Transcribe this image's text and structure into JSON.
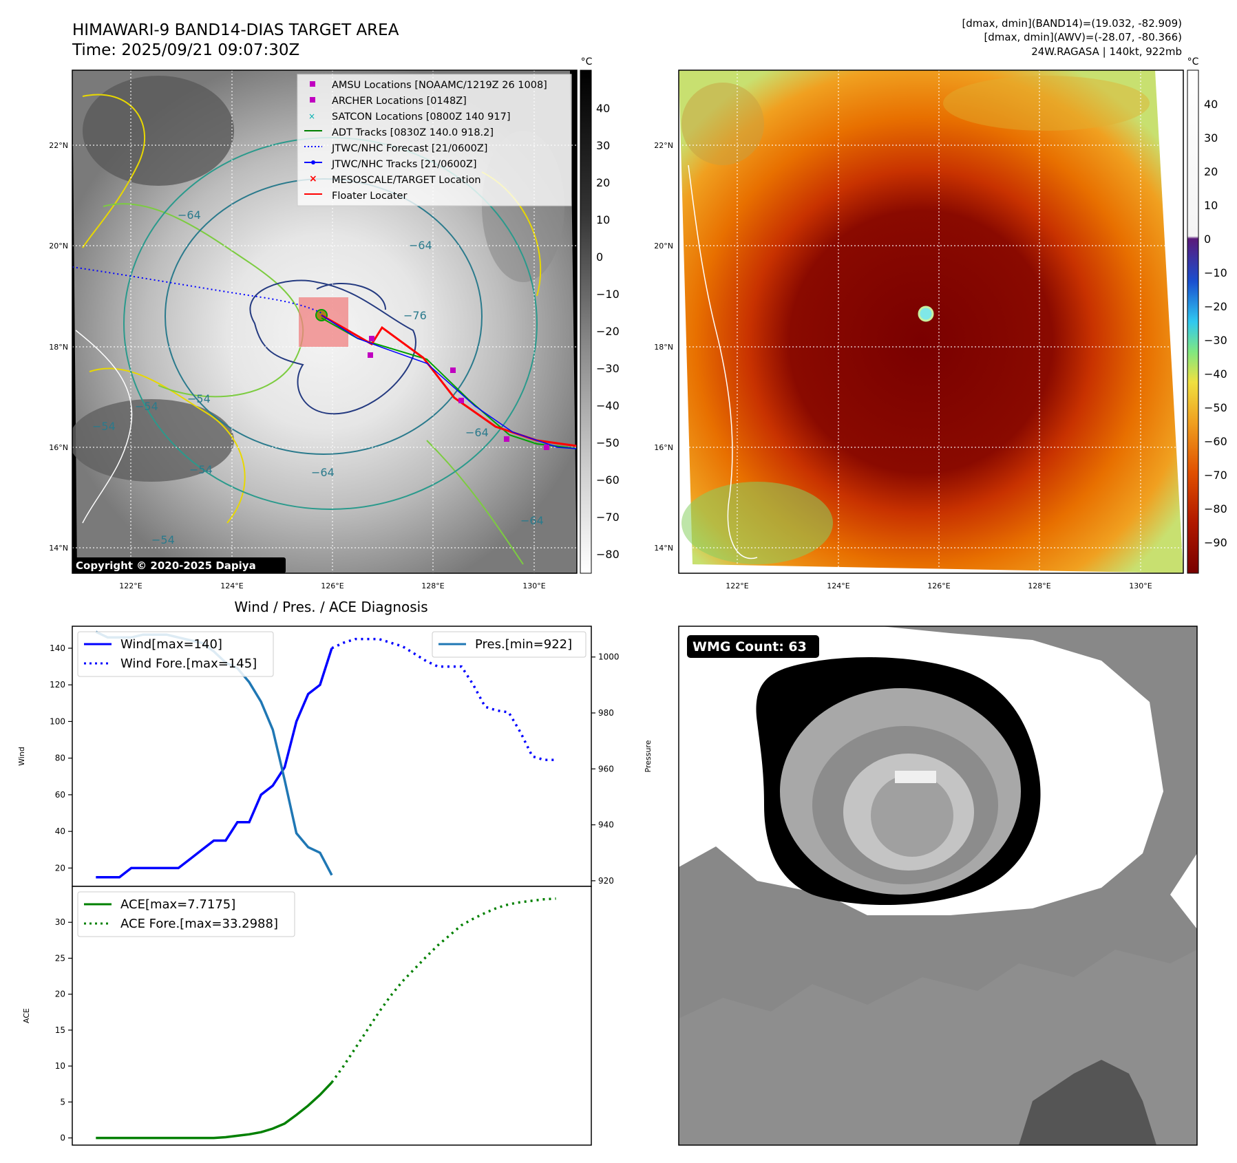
{
  "header": {
    "title_line1": "HIMAWARI-9 BAND14-DIAS TARGET AREA",
    "title_line2": "Time: 2025/09/21 09:07:30Z",
    "stats_line1": "[dmax, dmin](BAND14)=(19.032, -82.909)",
    "stats_line2": "[dmax, dmin](AWV)=(-28.07, -80.366)",
    "stats_line3": "24W.RAGASA | 140kt, 922mb"
  },
  "maps": {
    "lat_labels": [
      "22°N",
      "20°N",
      "18°N",
      "16°N",
      "14°N"
    ],
    "lon_labels": [
      "122°E",
      "124°E",
      "126°E",
      "128°E",
      "130°E"
    ],
    "colorbar_unit": "°C",
    "gray_colorbar_ticks": [
      "40",
      "30",
      "20",
      "10",
      "0",
      "−10",
      "−20",
      "−30",
      "−40",
      "−50",
      "−60",
      "−70",
      "−80"
    ],
    "color_colorbar_ticks": [
      "40",
      "30",
      "20",
      "10",
      "0",
      "−10",
      "−20",
      "−30",
      "−40",
      "−50",
      "−60",
      "−70",
      "−80",
      "−90"
    ],
    "copyright": "Copyright © 2020-2025 Dapiya",
    "contour_labels": [
      "−64",
      "−64",
      "−54",
      "−54",
      "−54",
      "−64",
      "−64",
      "−76",
      "−64",
      "−54",
      "−54"
    ],
    "legend": [
      {
        "label": "AMSU Locations [NOAAMC/1219Z 26 1008]",
        "color": "#c000c0"
      },
      {
        "label": "ARCHER Locations [0148Z]",
        "color": "#c000c0"
      },
      {
        "label": "SATCON Locations [0800Z 140 917]",
        "color": "#00c0c0"
      },
      {
        "label": "ADT Tracks [0830Z 140.0 918.2]",
        "color": "#008000"
      },
      {
        "label": "JTWC/NHC Forecast [21/0600Z]",
        "color": "#0000ff"
      },
      {
        "label": "JTWC/NHC Tracks [21/0600Z]",
        "color": "#0000ff"
      },
      {
        "label": "MESOSCALE/TARGET Location",
        "color": "#ff0000"
      },
      {
        "label": "Floater Locater",
        "color": "#ff0000"
      }
    ]
  },
  "wmg": {
    "label": "WMG Count: 63"
  },
  "chart_data": [
    {
      "type": "line",
      "title": "Wind / Pres. / ACE Diagnosis",
      "ylabel": "Wind",
      "y2label": "Pressure",
      "ylim": [
        10,
        152
      ],
      "y2lim": [
        918,
        1011
      ],
      "xlim": [
        -2,
        42
      ],
      "yticks": [
        20,
        40,
        60,
        80,
        100,
        120,
        140
      ],
      "y2ticks": [
        920,
        940,
        960,
        980,
        1000
      ],
      "series": [
        {
          "name": "Wind[max=140]",
          "color": "#0000ff",
          "style": "solid",
          "x": [
            0,
            2,
            3,
            4,
            5,
            6,
            7,
            8,
            9,
            10,
            11,
            12,
            13,
            14,
            15,
            16,
            17,
            18,
            19,
            20
          ],
          "values": [
            15,
            15,
            20,
            20,
            20,
            20,
            20,
            25,
            30,
            35,
            35,
            45,
            45,
            60,
            65,
            75,
            100,
            115,
            120,
            140
          ]
        },
        {
          "name": "Wind Fore.[max=145]",
          "color": "#0000ff",
          "style": "dotted",
          "x": [
            20,
            21,
            22,
            23,
            24,
            25,
            26,
            27,
            28,
            29,
            30,
            31,
            32,
            33,
            34,
            35,
            36,
            37,
            38,
            39
          ],
          "values": [
            140,
            143,
            145,
            145,
            145,
            143,
            141,
            137,
            133,
            130,
            130,
            130,
            120,
            108,
            106,
            105,
            94,
            81,
            79,
            79
          ]
        }
      ],
      "series_right": [
        {
          "name": "Pres.[min=922]",
          "color": "#1f77b4",
          "style": "solid",
          "x": [
            0,
            1,
            2,
            3,
            4,
            5,
            6,
            7,
            8,
            9,
            10,
            11,
            12,
            13,
            14,
            15,
            16,
            17,
            18,
            19,
            20
          ],
          "values": [
            1009,
            1007,
            1007,
            1007,
            1008,
            1008,
            1008,
            1007,
            1006,
            1005,
            1002,
            998,
            996,
            991,
            984,
            974,
            956,
            937,
            932,
            930,
            922
          ]
        }
      ]
    },
    {
      "type": "line",
      "ylabel": "ACE",
      "ylim": [
        -1,
        35
      ],
      "xlim": [
        -2,
        42
      ],
      "yticks": [
        0,
        5,
        10,
        15,
        20,
        25,
        30
      ],
      "series": [
        {
          "name": "ACE[max=7.7175]",
          "color": "#008000",
          "style": "solid",
          "x": [
            0,
            2,
            4,
            6,
            8,
            10,
            11,
            12,
            13,
            14,
            15,
            16,
            17,
            18,
            19,
            20
          ],
          "values": [
            0,
            0,
            0,
            0,
            0,
            0,
            0.1,
            0.3,
            0.5,
            0.8,
            1.3,
            2,
            3.2,
            4.5,
            6,
            7.72
          ]
        },
        {
          "name": "ACE Fore.[max=33.2988]",
          "color": "#008000",
          "style": "dotted",
          "x": [
            20,
            21,
            22,
            23,
            24,
            25,
            26,
            27,
            28,
            29,
            30,
            31,
            32,
            33,
            34,
            35,
            36,
            37,
            38,
            39
          ],
          "values": [
            7.72,
            10,
            12.5,
            15,
            17.5,
            19.8,
            21.8,
            23.5,
            25.2,
            26.8,
            28.2,
            29.6,
            30.5,
            31.3,
            32,
            32.5,
            32.8,
            33,
            33.2,
            33.3
          ]
        }
      ]
    }
  ]
}
